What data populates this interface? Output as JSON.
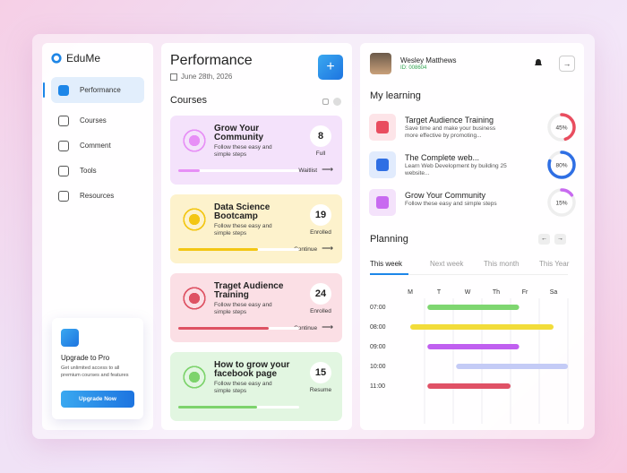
{
  "brand": "EduMe",
  "nav": {
    "items": [
      "Performance",
      "Courses",
      "Comment",
      "Tools",
      "Resources"
    ],
    "active": 0
  },
  "upgrade": {
    "title": "Upgrade to Pro",
    "text": "Get unlimited access to all premium courses and features",
    "button": "Upgrade Now"
  },
  "header": {
    "title": "Performance",
    "date": "June 28th, 2026"
  },
  "courses": {
    "title": "Courses",
    "cards": [
      {
        "title": "Grow Your Community",
        "desc": "Follow these easy and simple steps",
        "count": "8",
        "status": "Full",
        "action": "Waitlist",
        "progress": 18,
        "bg": "#f4e2fb",
        "color": "#e78ff6"
      },
      {
        "title": "Data Science Bootcamp",
        "desc": "Follow these easy and simple steps",
        "count": "19",
        "status": "Enrolled",
        "action": "Continue",
        "progress": 66,
        "bg": "#fdf2cc",
        "color": "#f3c613"
      },
      {
        "title": "Traget Audience Training",
        "desc": "Follow these easy and simple steps",
        "count": "24",
        "status": "Enrolled",
        "action": "Continue",
        "progress": 75,
        "bg": "#fbdfe5",
        "color": "#de5263"
      },
      {
        "title": "How to grow your facebook page",
        "desc": "Follow these easy and simple steps",
        "count": "15",
        "status": "Resume",
        "progress": 65,
        "bg": "#e2f6e1",
        "color": "#7dd36c"
      }
    ]
  },
  "user": {
    "name": "Wesley Matthews",
    "id": "ID: 008604"
  },
  "learning": {
    "title": "My learning",
    "items": [
      {
        "title": "Target Audience Training",
        "desc": "Save time and make your business more effective by promoting...",
        "progress": 45,
        "progress_label": "45%",
        "color": "#e94d5f",
        "bg": "#fde4e8"
      },
      {
        "title": "The Complete web...",
        "desc": "Learn Web Development by building 25 website...",
        "progress": 80,
        "progress_label": "80%",
        "color": "#2f6fe4",
        "bg": "#e1ebfd"
      },
      {
        "title": "Grow Your Community",
        "desc": "Follow these easy and simple steps",
        "progress": 15,
        "progress_label": "15%",
        "color": "#c86af0",
        "bg": "#f4e2fb"
      }
    ]
  },
  "planning": {
    "title": "Planning",
    "tabs": [
      "This week",
      "Next week",
      "This month",
      "This Year"
    ],
    "active_tab": 0,
    "days": [
      "M",
      "T",
      "W",
      "Th",
      "Fr",
      "Sa"
    ],
    "times": [
      "07:00",
      "08:00",
      "09:00",
      "10:00",
      "11:00"
    ],
    "events": [
      {
        "start": 1.1,
        "end": 4.3,
        "color": "#7ed670"
      },
      {
        "start": 0.5,
        "end": 5.5,
        "color": "#f2dc3a"
      },
      {
        "start": 1.1,
        "end": 4.3,
        "color": "#c05ff0"
      },
      {
        "start": 2.1,
        "end": 6.0,
        "color": "#c4cbf6"
      },
      {
        "start": 1.1,
        "end": 4.0,
        "color": "#e05166"
      }
    ]
  }
}
